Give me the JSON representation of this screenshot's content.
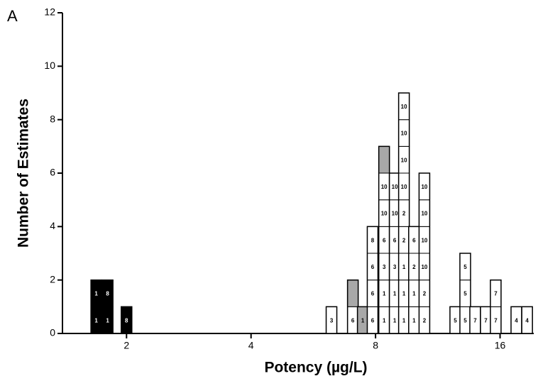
{
  "chart_data": {
    "type": "box-histogram",
    "panel_label": "A",
    "x_label": "Potency (µg/L)",
    "y_label": "Number of Estimates",
    "log_x": true,
    "xlim": [
      1.4,
      19.3
    ],
    "xticks": [
      2,
      4,
      8,
      16
    ],
    "ylim": [
      0,
      12
    ],
    "yticks": [
      0,
      2,
      4,
      6,
      8,
      10,
      12
    ],
    "columns": [
      {
        "x": 1.69,
        "count": 2,
        "labels": [
          "1",
          "1"
        ],
        "fills": [
          "#000000",
          "#000000"
        ]
      },
      {
        "x": 1.8,
        "count": 2,
        "labels": [
          "1",
          "8"
        ],
        "fills": [
          "#000000",
          "#000000"
        ]
      },
      {
        "x": 2.0,
        "count": 1,
        "labels": [
          "8"
        ],
        "fills": [
          "#000000"
        ]
      },
      {
        "x": 6.26,
        "count": 1,
        "labels": [
          "3"
        ],
        "fills": [
          "#ffffff"
        ]
      },
      {
        "x": 7.05,
        "count": 2,
        "labels": [
          "6",
          null
        ],
        "fills": [
          "#ffffff",
          "#a8a8a8"
        ]
      },
      {
        "x": 7.45,
        "count": 1,
        "labels": [
          "1"
        ],
        "fills": [
          "#a8a8a8"
        ]
      },
      {
        "x": 7.87,
        "count": 4,
        "labels": [
          "6",
          "6",
          "6",
          "8"
        ],
        "fills": [
          "#ffffff",
          "#ffffff",
          "#ffffff",
          "#ffffff"
        ]
      },
      {
        "x": 8.39,
        "count": 7,
        "labels": [
          "1",
          "1",
          "3",
          "6",
          "10",
          "10",
          null
        ],
        "fills": [
          "#ffffff",
          "#ffffff",
          "#ffffff",
          "#ffffff",
          "#ffffff",
          "#ffffff",
          "#a8a8a8"
        ]
      },
      {
        "x": 8.9,
        "count": 6,
        "labels": [
          "1",
          "1",
          "3",
          "6",
          "10",
          "10"
        ],
        "fills": [
          "#ffffff",
          "#ffffff",
          "#ffffff",
          "#ffffff",
          "#ffffff",
          "#ffffff"
        ]
      },
      {
        "x": 9.37,
        "count": 9,
        "labels": [
          "1",
          "1",
          "1",
          "2",
          "2",
          "10",
          "10",
          "10",
          "10"
        ],
        "fills": [
          "#ffffff",
          "#ffffff",
          "#ffffff",
          "#ffffff",
          "#ffffff",
          "#ffffff",
          "#ffffff",
          "#ffffff",
          "#ffffff"
        ]
      },
      {
        "x": 9.91,
        "count": 4,
        "labels": [
          "1",
          "1",
          "2",
          "6"
        ],
        "fills": [
          "#ffffff",
          "#ffffff",
          "#ffffff",
          "#ffffff"
        ]
      },
      {
        "x": 10.5,
        "count": 6,
        "labels": [
          "2",
          "2",
          "10",
          "10",
          "10",
          "10"
        ],
        "fills": [
          "#ffffff",
          "#ffffff",
          "#ffffff",
          "#ffffff",
          "#ffffff",
          "#ffffff"
        ]
      },
      {
        "x": 12.47,
        "count": 1,
        "labels": [
          "5"
        ],
        "fills": [
          "#ffffff"
        ]
      },
      {
        "x": 13.18,
        "count": 3,
        "labels": [
          "5",
          "5",
          "5"
        ],
        "fills": [
          "#ffffff",
          "#ffffff",
          "#ffffff"
        ]
      },
      {
        "x": 13.93,
        "count": 1,
        "labels": [
          "7"
        ],
        "fills": [
          "#ffffff"
        ]
      },
      {
        "x": 14.78,
        "count": 1,
        "labels": [
          "7"
        ],
        "fills": [
          "#ffffff"
        ]
      },
      {
        "x": 15.62,
        "count": 2,
        "labels": [
          "7",
          "7"
        ],
        "fills": [
          "#ffffff",
          "#ffffff"
        ]
      },
      {
        "x": 17.52,
        "count": 1,
        "labels": [
          "4"
        ],
        "fills": [
          "#ffffff"
        ]
      },
      {
        "x": 18.6,
        "count": 1,
        "labels": [
          "4"
        ],
        "fills": [
          "#ffffff"
        ]
      }
    ]
  }
}
